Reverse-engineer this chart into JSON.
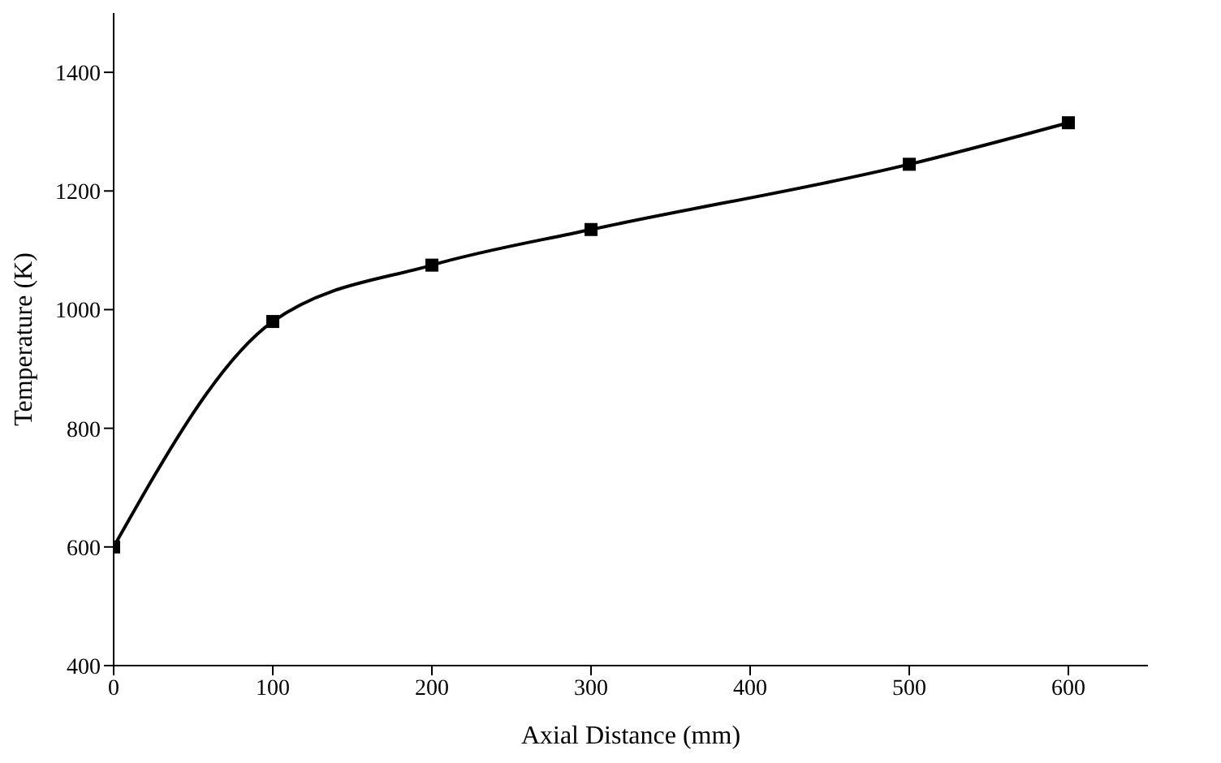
{
  "chart_data": {
    "type": "line",
    "xlabel": "Axial Distance (mm)",
    "ylabel": "Temperature (K)",
    "x": [
      0,
      100,
      200,
      300,
      500,
      600
    ],
    "series": [
      {
        "color": "#000000",
        "values": [
          600,
          980,
          1075,
          1135,
          1245,
          1315
        ]
      }
    ],
    "xlim": [
      0,
      650
    ],
    "xticks": [
      0,
      100,
      200,
      300,
      400,
      500,
      600
    ],
    "ylim": [
      400,
      1500
    ],
    "yticks": [
      400,
      600,
      800,
      1000,
      1200,
      1400
    ],
    "grid": false,
    "legend": false,
    "marker": "square",
    "line_style": "solid"
  }
}
